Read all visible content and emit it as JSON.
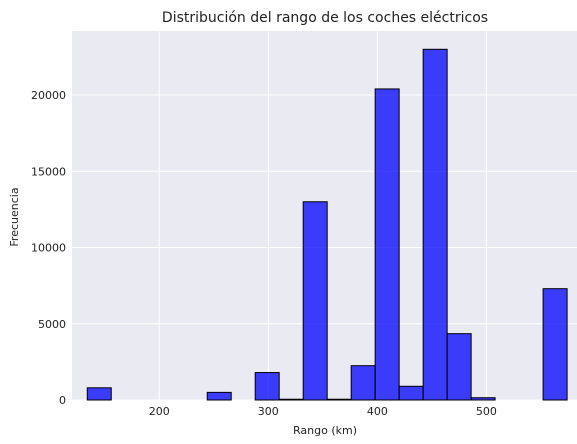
{
  "chart_data": {
    "type": "bar",
    "title": "Distribución del rango de los coches eléctricos",
    "xlabel": "Rango (km)",
    "ylabel": "Frecuencia",
    "xlim": [
      120,
      584
    ],
    "ylim": [
      0,
      24200
    ],
    "xticks": [
      200,
      300,
      400,
      500
    ],
    "yticks": [
      0,
      5000,
      10000,
      15000,
      20000
    ],
    "grid": true,
    "bins": [
      {
        "x0": 134,
        "x1": 156,
        "value": 800
      },
      {
        "x0": 156,
        "x1": 178,
        "value": 0
      },
      {
        "x0": 178,
        "x1": 200,
        "value": 0
      },
      {
        "x0": 200,
        "x1": 222,
        "value": 0
      },
      {
        "x0": 222,
        "x1": 244,
        "value": 0
      },
      {
        "x0": 244,
        "x1": 266,
        "value": 500
      },
      {
        "x0": 266,
        "x1": 288,
        "value": 0
      },
      {
        "x0": 288,
        "x1": 310,
        "value": 1800
      },
      {
        "x0": 310,
        "x1": 332,
        "value": 50
      },
      {
        "x0": 332,
        "x1": 354,
        "value": 13000
      },
      {
        "x0": 354,
        "x1": 376,
        "value": 50
      },
      {
        "x0": 376,
        "x1": 398,
        "value": 2250
      },
      {
        "x0": 398,
        "x1": 420,
        "value": 20400
      },
      {
        "x0": 420,
        "x1": 442,
        "value": 900
      },
      {
        "x0": 442,
        "x1": 464,
        "value": 23000
      },
      {
        "x0": 464,
        "x1": 486,
        "value": 4350
      },
      {
        "x0": 486,
        "x1": 508,
        "value": 150
      },
      {
        "x0": 508,
        "x1": 530,
        "value": 0
      },
      {
        "x0": 530,
        "x1": 552,
        "value": 0
      },
      {
        "x0": 552,
        "x1": 574,
        "value": 7300
      }
    ],
    "colors": {
      "plot_background": "#EAEAF2",
      "grid": "#FFFFFF",
      "bar_fill": "#0000FF",
      "bar_opacity": 0.75,
      "bar_edge": "#000000"
    }
  }
}
